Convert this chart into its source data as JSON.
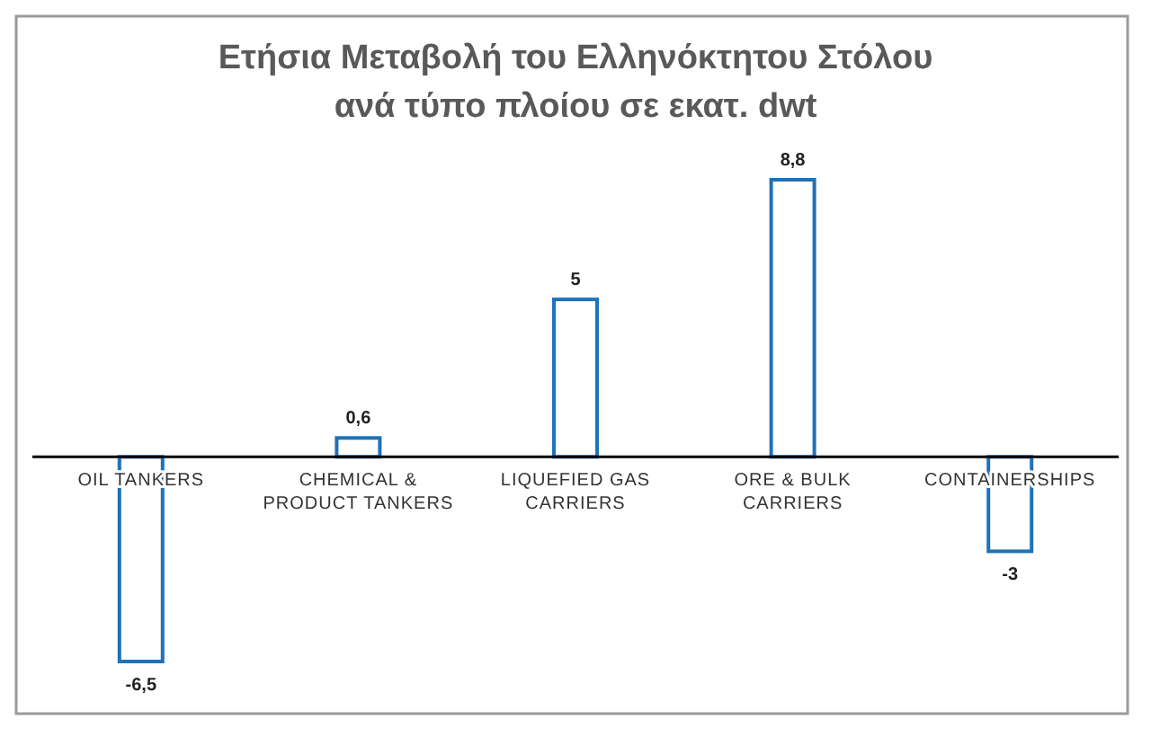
{
  "chart_data": {
    "type": "bar",
    "title": "Ετήσια Μεταβολή του Ελληνόκτητου Στόλου",
    "subtitle": "ανά τύπο πλοίου σε εκατ. dwt",
    "categories": [
      "OIL TANKERS",
      "CHEMICAL & PRODUCT TANKERS",
      "LIQUEFIED GAS CARRIERS",
      "ORE & BULK CARRIERS",
      "CONTAINERSHIPS"
    ],
    "values": [
      -6.5,
      0.6,
      5,
      8.8,
      -3
    ],
    "value_labels": [
      "-6,5",
      "0,6",
      "5",
      "8,8",
      "-3"
    ],
    "color": "#1f72b8"
  }
}
